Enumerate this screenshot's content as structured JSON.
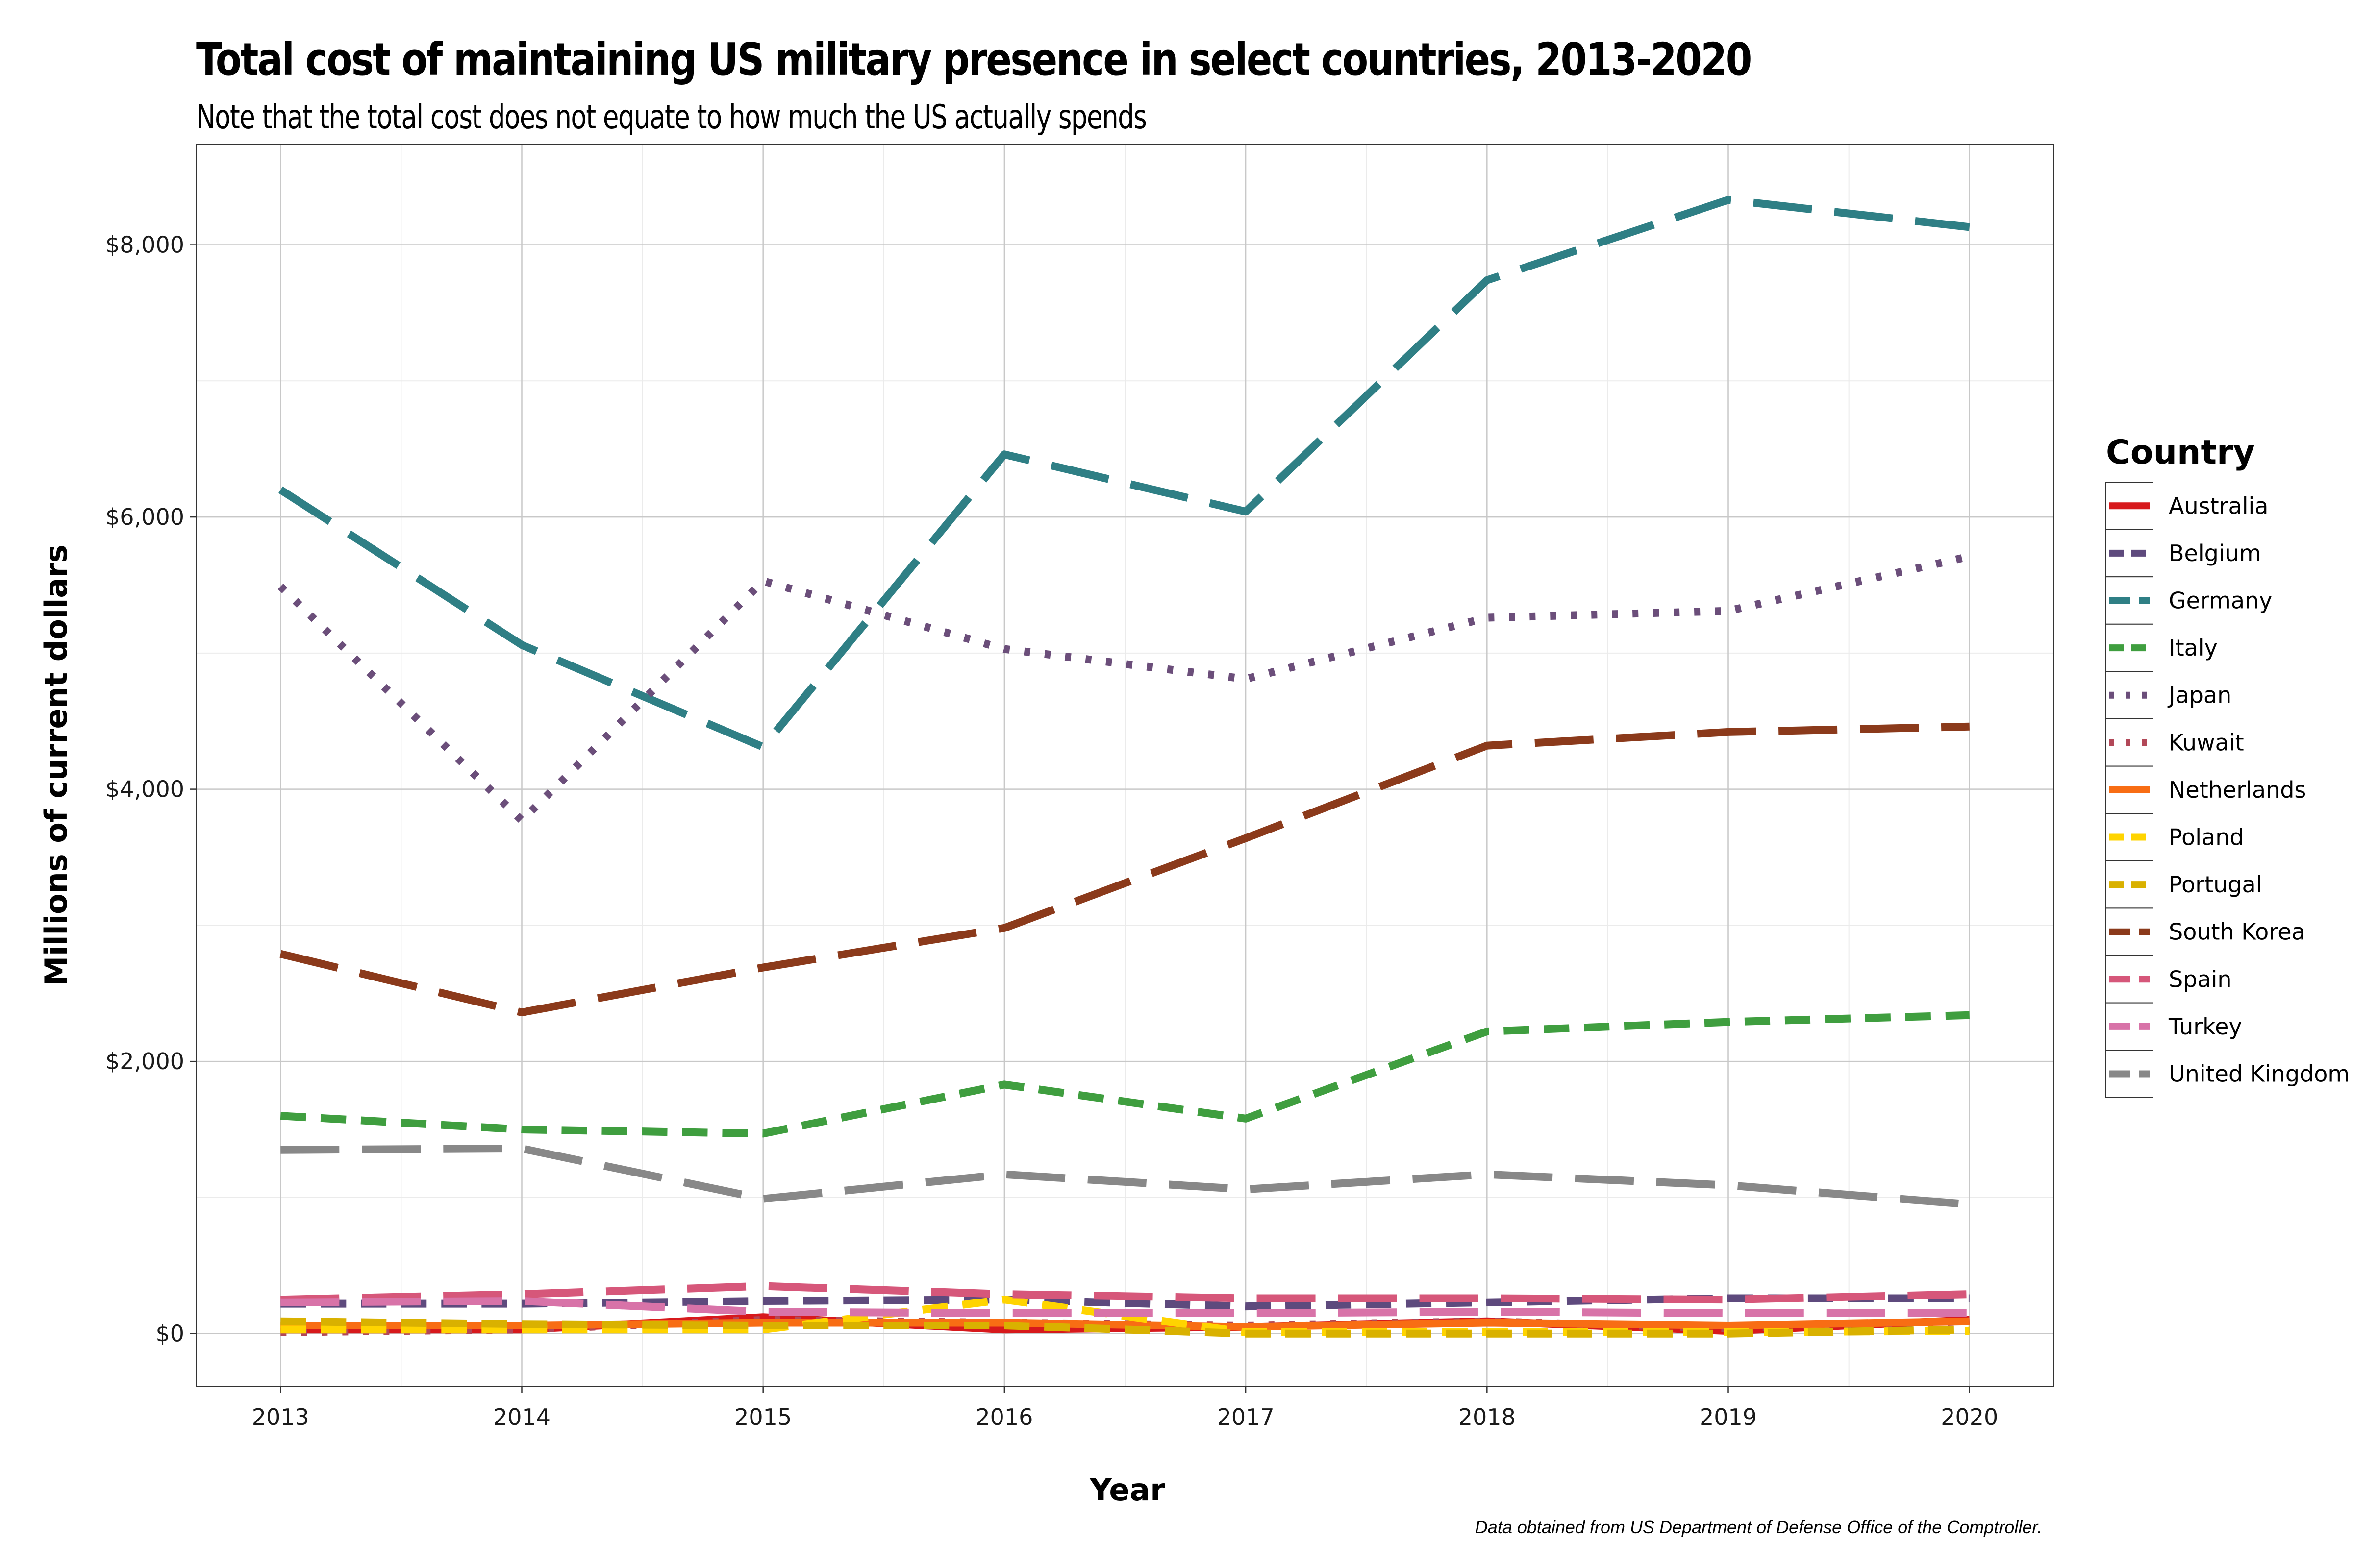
{
  "chart_data": {
    "type": "line",
    "title": "Total cost of maintaining US military presence in select countries, 2013-2020",
    "subtitle": "Note that the total cost does not equate to how much the US actually spends",
    "caption": "Data obtained from US Department of Defense Office of the Comptroller.",
    "xlabel": "Year",
    "ylabel": "Millions of current dollars",
    "x": [
      2013,
      2014,
      2015,
      2016,
      2017,
      2018,
      2019,
      2020
    ],
    "x_tick_labels": [
      "2013",
      "2014",
      "2015",
      "2016",
      "2017",
      "2018",
      "2019",
      "2020"
    ],
    "y_ticks": [
      0,
      2000,
      4000,
      6000,
      8000
    ],
    "y_tick_labels": [
      "$0",
      "$2,000",
      "$4,000",
      "$6,000",
      "$8,000"
    ],
    "xlim": [
      2012.65,
      2020.35
    ],
    "ylim": [
      -390,
      8740
    ],
    "grid": true,
    "legend": {
      "title": "Country",
      "position": "right"
    },
    "series": [
      {
        "name": "Australia",
        "color": "#d7191c",
        "dash": "solid",
        "values": [
          30,
          30,
          120,
          30,
          50,
          90,
          20,
          100
        ]
      },
      {
        "name": "Belgium",
        "color": "#5e4a7d",
        "dash": "dashed",
        "values": [
          220,
          220,
          240,
          250,
          200,
          230,
          260,
          260
        ]
      },
      {
        "name": "Germany",
        "color": "#2f7f85",
        "dash": "longdash",
        "values": [
          6200,
          5060,
          4310,
          6460,
          6040,
          7740,
          8330,
          8130
        ]
      },
      {
        "name": "Italy",
        "color": "#3f9e3f",
        "dash": "dashed",
        "values": [
          1600,
          1500,
          1470,
          1830,
          1580,
          2220,
          2290,
          2340
        ]
      },
      {
        "name": "Japan",
        "color": "#6b4e7a",
        "dash": "dotted",
        "values": [
          5490,
          3770,
          5530,
          5030,
          4810,
          5260,
          5310,
          5710
        ]
      },
      {
        "name": "Kuwait",
        "color": "#b24858",
        "dash": "dotted",
        "values": [
          10,
          30,
          100,
          80,
          60,
          90,
          40,
          90
        ]
      },
      {
        "name": "Netherlands",
        "color": "#f86d14",
        "dash": "solid",
        "values": [
          60,
          60,
          80,
          80,
          50,
          80,
          60,
          90
        ]
      },
      {
        "name": "Poland",
        "color": "#ffd400",
        "dash": "dashed",
        "values": [
          30,
          30,
          30,
          250,
          10,
          10,
          10,
          20
        ]
      },
      {
        "name": "Portugal",
        "color": "#d9b100",
        "dash": "dashed",
        "values": [
          90,
          70,
          60,
          60,
          0,
          0,
          0,
          30
        ]
      },
      {
        "name": "South Korea",
        "color": "#8b3a1b",
        "dash": "longdash",
        "values": [
          2790,
          2360,
          2690,
          2980,
          3640,
          4320,
          4420,
          4460
        ]
      },
      {
        "name": "Spain",
        "color": "#d6577a",
        "dash": "longdash",
        "values": [
          250,
          290,
          350,
          290,
          260,
          260,
          250,
          290
        ]
      },
      {
        "name": "Turkey",
        "color": "#d873a8",
        "dash": "longdash",
        "values": [
          230,
          240,
          160,
          150,
          150,
          160,
          150,
          150
        ]
      },
      {
        "name": "United Kingdom",
        "color": "#888888",
        "dash": "longdash",
        "values": [
          1350,
          1360,
          990,
          1170,
          1060,
          1170,
          1090,
          950
        ]
      }
    ]
  }
}
